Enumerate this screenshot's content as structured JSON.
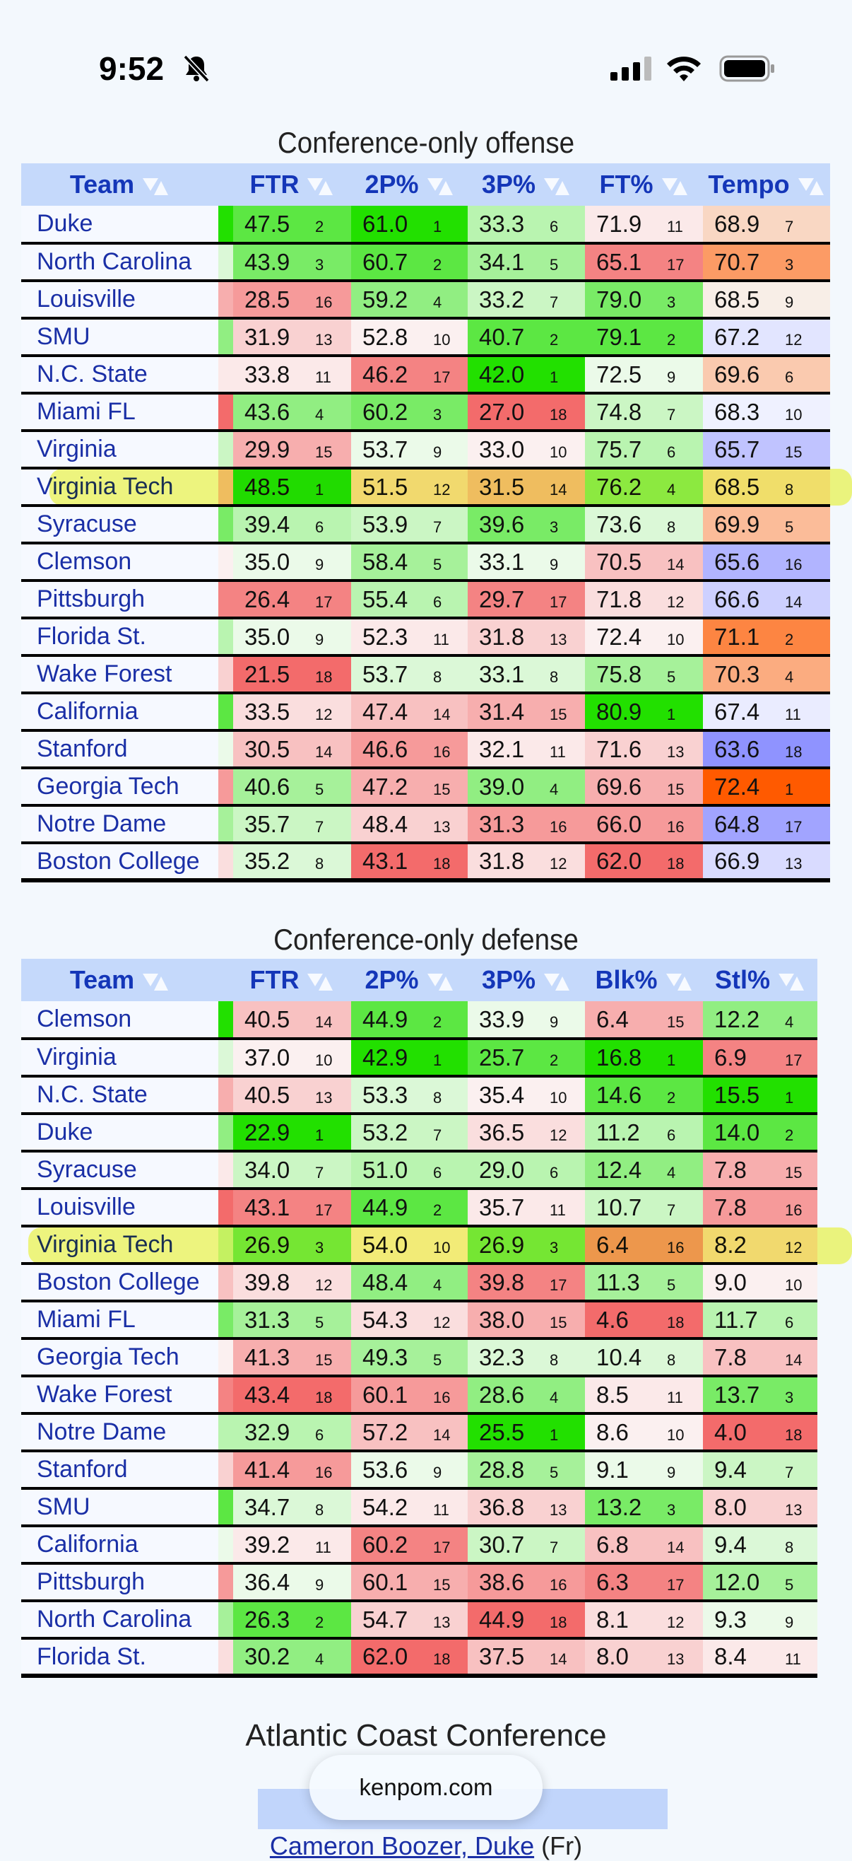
{
  "status_bar": {
    "time": "9:52"
  },
  "offense": {
    "title": "Conference-only offense",
    "headers": [
      "Team",
      "FTR",
      "2P%",
      "3P%",
      "FT%",
      "Tempo"
    ],
    "rows": [
      {
        "team": "Duke",
        "v": [
          [
            "47.5",
            2
          ],
          [
            "61.0",
            1
          ],
          [
            "33.3",
            6
          ],
          [
            "71.9",
            11
          ],
          [
            "68.9",
            7
          ]
        ]
      },
      {
        "team": "North Carolina",
        "v": [
          [
            "43.9",
            3
          ],
          [
            "60.7",
            2
          ],
          [
            "34.1",
            5
          ],
          [
            "65.1",
            17
          ],
          [
            "70.7",
            3
          ]
        ]
      },
      {
        "team": "Louisville",
        "v": [
          [
            "28.5",
            16
          ],
          [
            "59.2",
            4
          ],
          [
            "33.2",
            7
          ],
          [
            "79.0",
            3
          ],
          [
            "68.5",
            9
          ]
        ]
      },
      {
        "team": "SMU",
        "v": [
          [
            "31.9",
            13
          ],
          [
            "52.8",
            10
          ],
          [
            "40.7",
            2
          ],
          [
            "79.1",
            2
          ],
          [
            "67.2",
            12
          ]
        ]
      },
      {
        "team": "N.C. State",
        "v": [
          [
            "33.8",
            11
          ],
          [
            "46.2",
            17
          ],
          [
            "42.0",
            1
          ],
          [
            "72.5",
            9
          ],
          [
            "69.6",
            6
          ]
        ]
      },
      {
        "team": "Miami FL",
        "v": [
          [
            "43.6",
            4
          ],
          [
            "60.2",
            3
          ],
          [
            "27.0",
            18
          ],
          [
            "74.8",
            7
          ],
          [
            "68.3",
            10
          ]
        ]
      },
      {
        "team": "Virginia",
        "v": [
          [
            "29.9",
            15
          ],
          [
            "53.7",
            9
          ],
          [
            "33.0",
            10
          ],
          [
            "75.7",
            6
          ],
          [
            "65.7",
            15
          ]
        ]
      },
      {
        "team": "Virginia Tech",
        "v": [
          [
            "48.5",
            1
          ],
          [
            "51.5",
            12
          ],
          [
            "31.5",
            14
          ],
          [
            "76.2",
            4
          ],
          [
            "68.5",
            8
          ]
        ]
      },
      {
        "team": "Syracuse",
        "v": [
          [
            "39.4",
            6
          ],
          [
            "53.9",
            7
          ],
          [
            "39.6",
            3
          ],
          [
            "73.6",
            8
          ],
          [
            "69.9",
            5
          ]
        ]
      },
      {
        "team": "Clemson",
        "v": [
          [
            "35.0",
            9
          ],
          [
            "58.4",
            5
          ],
          [
            "33.1",
            9
          ],
          [
            "70.5",
            14
          ],
          [
            "65.6",
            16
          ]
        ]
      },
      {
        "team": "Pittsburgh",
        "v": [
          [
            "26.4",
            17
          ],
          [
            "55.4",
            6
          ],
          [
            "29.7",
            17
          ],
          [
            "71.8",
            12
          ],
          [
            "66.6",
            14
          ]
        ]
      },
      {
        "team": "Florida St.",
        "v": [
          [
            "35.0",
            9
          ],
          [
            "52.3",
            11
          ],
          [
            "31.8",
            13
          ],
          [
            "72.4",
            10
          ],
          [
            "71.1",
            2
          ]
        ]
      },
      {
        "team": "Wake Forest",
        "v": [
          [
            "21.5",
            18
          ],
          [
            "53.7",
            8
          ],
          [
            "33.1",
            8
          ],
          [
            "75.8",
            5
          ],
          [
            "70.3",
            4
          ]
        ]
      },
      {
        "team": "California",
        "v": [
          [
            "33.5",
            12
          ],
          [
            "47.4",
            14
          ],
          [
            "31.4",
            15
          ],
          [
            "80.9",
            1
          ],
          [
            "67.4",
            11
          ]
        ]
      },
      {
        "team": "Stanford",
        "v": [
          [
            "30.5",
            14
          ],
          [
            "46.6",
            16
          ],
          [
            "32.1",
            11
          ],
          [
            "71.6",
            13
          ],
          [
            "63.6",
            18
          ]
        ]
      },
      {
        "team": "Georgia Tech",
        "v": [
          [
            "40.6",
            5
          ],
          [
            "47.2",
            15
          ],
          [
            "39.0",
            4
          ],
          [
            "69.6",
            15
          ],
          [
            "72.4",
            1
          ]
        ]
      },
      {
        "team": "Notre Dame",
        "v": [
          [
            "35.7",
            7
          ],
          [
            "48.4",
            13
          ],
          [
            "31.3",
            16
          ],
          [
            "66.0",
            16
          ],
          [
            "64.8",
            17
          ]
        ]
      },
      {
        "team": "Boston College",
        "v": [
          [
            "35.2",
            8
          ],
          [
            "43.1",
            18
          ],
          [
            "31.8",
            12
          ],
          [
            "62.0",
            18
          ],
          [
            "66.9",
            13
          ]
        ]
      }
    ]
  },
  "defense": {
    "title": "Conference-only defense",
    "headers": [
      "Team",
      "FTR",
      "2P%",
      "3P%",
      "Blk%",
      "Stl%"
    ],
    "rows": [
      {
        "team": "Clemson",
        "v": [
          [
            "40.5",
            14
          ],
          [
            "44.9",
            2
          ],
          [
            "33.9",
            9
          ],
          [
            "6.4",
            15
          ],
          [
            "12.2",
            4
          ]
        ]
      },
      {
        "team": "Virginia",
        "v": [
          [
            "37.0",
            10
          ],
          [
            "42.9",
            1
          ],
          [
            "25.7",
            2
          ],
          [
            "16.8",
            1
          ],
          [
            "6.9",
            17
          ]
        ]
      },
      {
        "team": "N.C. State",
        "v": [
          [
            "40.5",
            13
          ],
          [
            "53.3",
            8
          ],
          [
            "35.4",
            10
          ],
          [
            "14.6",
            2
          ],
          [
            "15.5",
            1
          ]
        ]
      },
      {
        "team": "Duke",
        "v": [
          [
            "22.9",
            1
          ],
          [
            "53.2",
            7
          ],
          [
            "36.5",
            12
          ],
          [
            "11.2",
            6
          ],
          [
            "14.0",
            2
          ]
        ]
      },
      {
        "team": "Syracuse",
        "v": [
          [
            "34.0",
            7
          ],
          [
            "51.0",
            6
          ],
          [
            "29.0",
            6
          ],
          [
            "12.4",
            4
          ],
          [
            "7.8",
            15
          ]
        ]
      },
      {
        "team": "Louisville",
        "v": [
          [
            "43.1",
            17
          ],
          [
            "44.9",
            2
          ],
          [
            "35.7",
            11
          ],
          [
            "10.7",
            7
          ],
          [
            "7.8",
            16
          ]
        ]
      },
      {
        "team": "Virginia Tech",
        "v": [
          [
            "26.9",
            3
          ],
          [
            "54.0",
            10
          ],
          [
            "26.9",
            3
          ],
          [
            "6.4",
            16
          ],
          [
            "8.2",
            12
          ]
        ]
      },
      {
        "team": "Boston College",
        "v": [
          [
            "39.8",
            12
          ],
          [
            "48.4",
            4
          ],
          [
            "39.8",
            17
          ],
          [
            "11.3",
            5
          ],
          [
            "9.0",
            10
          ]
        ]
      },
      {
        "team": "Miami FL",
        "v": [
          [
            "31.3",
            5
          ],
          [
            "54.3",
            12
          ],
          [
            "38.0",
            15
          ],
          [
            "4.6",
            18
          ],
          [
            "11.7",
            6
          ]
        ]
      },
      {
        "team": "Georgia Tech",
        "v": [
          [
            "41.3",
            15
          ],
          [
            "49.3",
            5
          ],
          [
            "32.3",
            8
          ],
          [
            "10.4",
            8
          ],
          [
            "7.8",
            14
          ]
        ]
      },
      {
        "team": "Wake Forest",
        "v": [
          [
            "43.4",
            18
          ],
          [
            "60.1",
            16
          ],
          [
            "28.6",
            4
          ],
          [
            "8.5",
            11
          ],
          [
            "13.7",
            3
          ]
        ]
      },
      {
        "team": "Notre Dame",
        "v": [
          [
            "32.9",
            6
          ],
          [
            "57.2",
            14
          ],
          [
            "25.5",
            1
          ],
          [
            "8.6",
            10
          ],
          [
            "4.0",
            18
          ]
        ]
      },
      {
        "team": "Stanford",
        "v": [
          [
            "41.4",
            16
          ],
          [
            "53.6",
            9
          ],
          [
            "28.8",
            5
          ],
          [
            "9.1",
            9
          ],
          [
            "9.4",
            7
          ]
        ]
      },
      {
        "team": "SMU",
        "v": [
          [
            "34.7",
            8
          ],
          [
            "54.2",
            11
          ],
          [
            "36.8",
            13
          ],
          [
            "13.2",
            3
          ],
          [
            "8.0",
            13
          ]
        ]
      },
      {
        "team": "California",
        "v": [
          [
            "39.2",
            11
          ],
          [
            "60.2",
            17
          ],
          [
            "30.7",
            7
          ],
          [
            "6.8",
            14
          ],
          [
            "9.4",
            8
          ]
        ]
      },
      {
        "team": "Pittsburgh",
        "v": [
          [
            "36.4",
            9
          ],
          [
            "60.1",
            15
          ],
          [
            "38.6",
            16
          ],
          [
            "6.3",
            17
          ],
          [
            "12.0",
            5
          ]
        ]
      },
      {
        "team": "North Carolina",
        "v": [
          [
            "26.3",
            2
          ],
          [
            "54.7",
            13
          ],
          [
            "44.9",
            18
          ],
          [
            "8.1",
            12
          ],
          [
            "9.3",
            9
          ]
        ]
      },
      {
        "team": "Florida St.",
        "v": [
          [
            "30.2",
            4
          ],
          [
            "62.0",
            18
          ],
          [
            "37.5",
            14
          ],
          [
            "8.0",
            13
          ],
          [
            "8.4",
            11
          ]
        ]
      }
    ]
  },
  "footer": {
    "conference_title": "Atlantic Coast Conference",
    "url": "kenpom.com",
    "player_name": "Cameron Boozer, Duke",
    "player_class": "(Fr)"
  },
  "colors": {
    "best": "#22e000",
    "worst": "#f36b6b",
    "fast": "#ff5a00",
    "slow": "#8f93ff",
    "highlight": "#eef514"
  }
}
